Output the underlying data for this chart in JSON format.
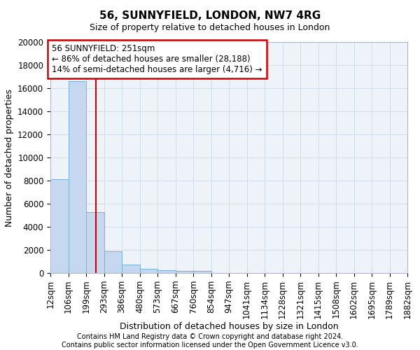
{
  "title": "56, SUNNYFIELD, LONDON, NW7 4RG",
  "subtitle": "Size of property relative to detached houses in London",
  "xlabel": "Distribution of detached houses by size in London",
  "ylabel": "Number of detached properties",
  "footer_line1": "Contains HM Land Registry data © Crown copyright and database right 2024.",
  "footer_line2": "Contains public sector information licensed under the Open Government Licence v3.0.",
  "annotation_line1": "56 SUNNYFIELD: 251sqm",
  "annotation_line2": "← 86% of detached houses are smaller (28,188)",
  "annotation_line3": "14% of semi-detached houses are larger (4,716) →",
  "property_size": 251,
  "bar_color": "#c5d8ef",
  "bar_edge_color": "#7aafd4",
  "vline_color": "#cc0000",
  "annotation_box_edgecolor": "#cc0000",
  "grid_color": "#d0dce8",
  "bg_color": "#eef3fa",
  "bin_edges": [
    12,
    106,
    199,
    293,
    386,
    480,
    573,
    667,
    760,
    854,
    947,
    1041,
    1134,
    1228,
    1321,
    1415,
    1508,
    1602,
    1695,
    1789,
    1882
  ],
  "bar_heights": [
    8100,
    16600,
    5300,
    1850,
    700,
    350,
    270,
    200,
    180,
    0,
    0,
    0,
    0,
    0,
    0,
    0,
    0,
    0,
    0,
    0
  ],
  "ylim": [
    0,
    20000
  ],
  "yticks": [
    0,
    2000,
    4000,
    6000,
    8000,
    10000,
    12000,
    14000,
    16000,
    18000,
    20000
  ],
  "title_fontsize": 11,
  "subtitle_fontsize": 9,
  "axis_label_fontsize": 9,
  "tick_fontsize": 8.5,
  "annotation_fontsize": 8.5,
  "footer_fontsize": 7
}
